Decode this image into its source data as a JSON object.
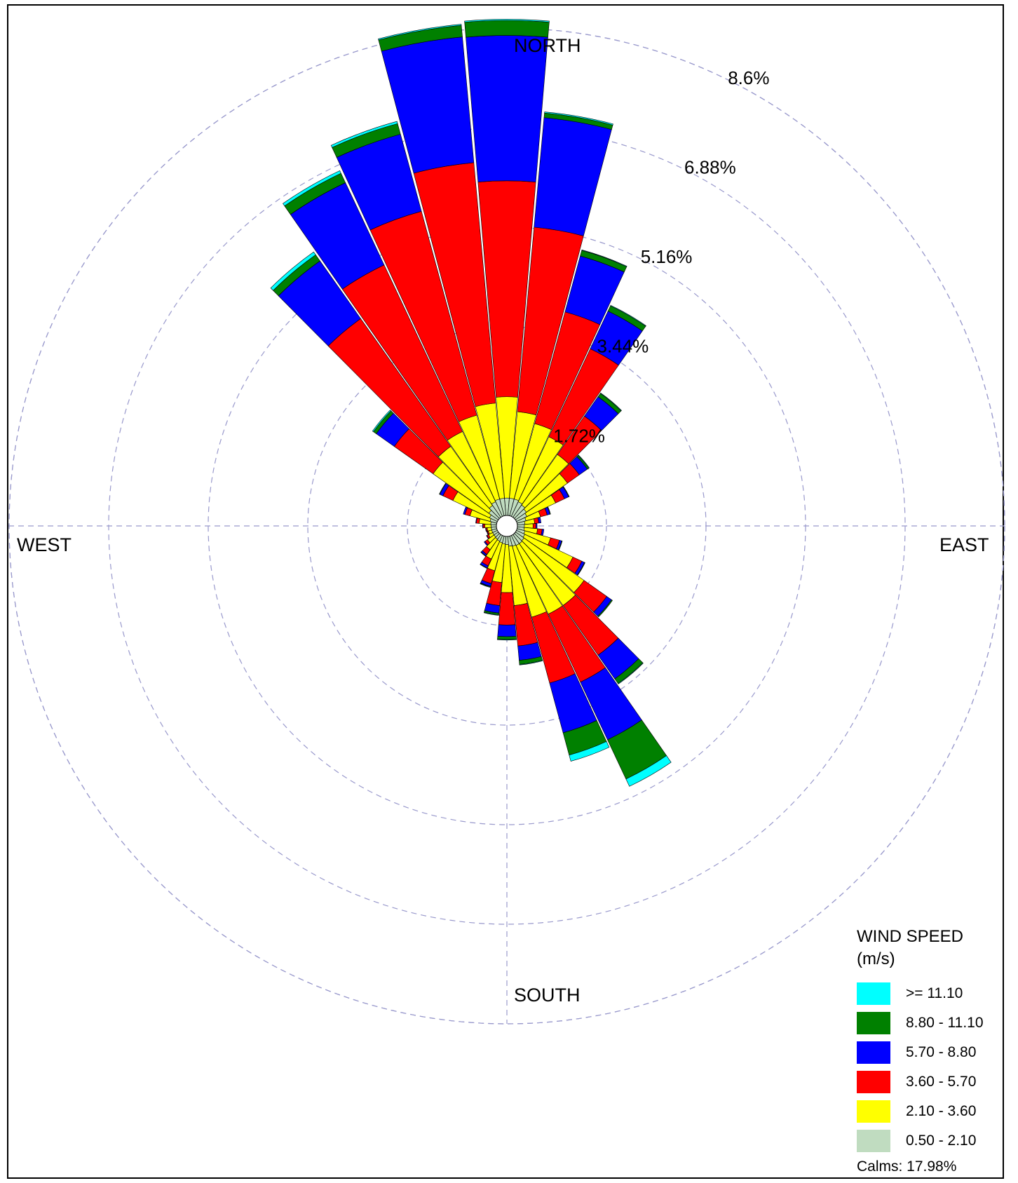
{
  "directions": {
    "north": "NORTH",
    "south": "SOUTH",
    "east": "EAST",
    "west": "WEST"
  },
  "ring_labels": [
    "1.72%",
    "3.44%",
    "5.16%",
    "6.88%",
    "8.6%"
  ],
  "legend": {
    "title_line1": "WIND SPEED",
    "title_line2": "(m/s)",
    "items": [
      {
        "label": ">= 11.10",
        "color": "#00ffff"
      },
      {
        "label": "8.80 - 11.10",
        "color": "#008000"
      },
      {
        "label": "5.70 - 8.80",
        "color": "#0000ff"
      },
      {
        "label": "3.60 - 5.70",
        "color": "#ff0000"
      },
      {
        "label": "2.10 - 3.60",
        "color": "#ffff00"
      },
      {
        "label": "0.50 - 2.10",
        "color": "#c0dcc0"
      }
    ],
    "calms": "Calms: 17.98%"
  },
  "chart_data": {
    "type": "wind-rose",
    "unit": "percent frequency",
    "rings": [
      1.72,
      3.44,
      5.16,
      6.88,
      8.6
    ],
    "r_max": 8.6,
    "sector_count": 36,
    "sector_width_deg": 10,
    "bins": [
      {
        "name": "0.50 - 2.10",
        "color": "#c0dcc0"
      },
      {
        "name": "2.10 - 3.60",
        "color": "#ffff00"
      },
      {
        "name": "3.60 - 5.70",
        "color": "#ff0000"
      },
      {
        "name": "5.70 - 8.80",
        "color": "#0000ff"
      },
      {
        "name": "8.80 - 11.10",
        "color": "#008000"
      },
      {
        "name": ">= 11.10",
        "color": "#00ffff"
      }
    ],
    "sectors": [
      {
        "direction": 0,
        "cumulative": [
          0.3,
          2.05,
          5.78,
          8.29,
          8.55,
          8.57
        ]
      },
      {
        "direction": 10,
        "cumulative": [
          0.3,
          1.8,
          5.0,
          6.9,
          6.98,
          7.0
        ]
      },
      {
        "direction": 20,
        "cumulative": [
          0.3,
          1.65,
          3.65,
          4.65,
          4.75,
          4.76
        ]
      },
      {
        "direction": 30,
        "cumulative": [
          0.28,
          1.52,
          3.2,
          3.92,
          4.02,
          4.03
        ]
      },
      {
        "direction": 40,
        "cumulative": [
          0.26,
          1.33,
          2.14,
          2.55,
          2.62,
          2.63
        ]
      },
      {
        "direction": 50,
        "cumulative": [
          0.23,
          1.1,
          1.35,
          1.52,
          1.55,
          1.56
        ]
      },
      {
        "direction": 60,
        "cumulative": [
          0.2,
          0.75,
          0.92,
          1.0,
          1.01,
          1.01
        ]
      },
      {
        "direction": 70,
        "cumulative": [
          0.16,
          0.42,
          0.54,
          0.59,
          0.6,
          0.6
        ]
      },
      {
        "direction": 80,
        "cumulative": [
          0.13,
          0.3,
          0.37,
          0.41,
          0.41,
          0.41
        ]
      },
      {
        "direction": 90,
        "cumulative": [
          0.12,
          0.27,
          0.32,
          0.34,
          0.34,
          0.34
        ]
      },
      {
        "direction": 100,
        "cumulative": [
          0.12,
          0.35,
          0.43,
          0.46,
          0.46,
          0.46
        ]
      },
      {
        "direction": 110,
        "cumulative": [
          0.14,
          0.6,
          0.76,
          0.8,
          0.81,
          0.81
        ]
      },
      {
        "direction": 120,
        "cumulative": [
          0.16,
          1.08,
          1.25,
          1.3,
          1.31,
          1.31
        ]
      },
      {
        "direction": 130,
        "cumulative": [
          0.18,
          1.45,
          1.93,
          2.03,
          2.05,
          2.05
        ]
      },
      {
        "direction": 140,
        "cumulative": [
          0.19,
          1.5,
          2.55,
          3.05,
          3.15,
          3.16
        ]
      },
      {
        "direction": 150,
        "cumulative": [
          0.19,
          1.5,
          2.8,
          3.9,
          4.65,
          4.79
        ]
      },
      {
        "direction": 160,
        "cumulative": [
          0.18,
          1.45,
          2.63,
          3.52,
          3.92,
          4.03
        ]
      },
      {
        "direction": 170,
        "cumulative": [
          0.17,
          1.2,
          1.9,
          2.15,
          2.22,
          2.23
        ]
      },
      {
        "direction": 180,
        "cumulative": [
          0.14,
          0.97,
          1.53,
          1.73,
          1.78,
          1.79
        ]
      },
      {
        "direction": 190,
        "cumulative": [
          0.13,
          0.8,
          1.2,
          1.33,
          1.36,
          1.37
        ]
      },
      {
        "direction": 200,
        "cumulative": [
          0.12,
          0.62,
          0.85,
          0.9,
          0.91,
          0.92
        ]
      },
      {
        "direction": 210,
        "cumulative": [
          0.11,
          0.45,
          0.58,
          0.62,
          0.63,
          0.63
        ]
      },
      {
        "direction": 220,
        "cumulative": [
          0.1,
          0.32,
          0.42,
          0.45,
          0.46,
          0.46
        ]
      },
      {
        "direction": 230,
        "cumulative": [
          0.09,
          0.23,
          0.28,
          0.3,
          0.3,
          0.3
        ]
      },
      {
        "direction": 240,
        "cumulative": [
          0.09,
          0.17,
          0.2,
          0.21,
          0.21,
          0.21
        ]
      },
      {
        "direction": 250,
        "cumulative": [
          0.09,
          0.15,
          0.17,
          0.18,
          0.18,
          0.18
        ]
      },
      {
        "direction": 260,
        "cumulative": [
          0.09,
          0.16,
          0.18,
          0.19,
          0.19,
          0.19
        ]
      },
      {
        "direction": 270,
        "cumulative": [
          0.09,
          0.2,
          0.23,
          0.24,
          0.24,
          0.24
        ]
      },
      {
        "direction": 280,
        "cumulative": [
          0.1,
          0.3,
          0.35,
          0.36,
          0.36,
          0.36
        ]
      },
      {
        "direction": 290,
        "cumulative": [
          0.12,
          0.48,
          0.57,
          0.6,
          0.6,
          0.6
        ]
      },
      {
        "direction": 300,
        "cumulative": [
          0.15,
          0.85,
          1.04,
          1.1,
          1.11,
          1.11
        ]
      },
      {
        "direction": 310,
        "cumulative": [
          0.2,
          1.38,
          2.2,
          2.58,
          2.64,
          2.66
        ]
      },
      {
        "direction": 320,
        "cumulative": [
          0.25,
          1.5,
          4.2,
          5.42,
          5.55,
          5.61
        ]
      },
      {
        "direction": 330,
        "cumulative": [
          0.28,
          1.62,
          4.8,
          6.37,
          6.55,
          6.6
        ]
      },
      {
        "direction": 340,
        "cumulative": [
          0.3,
          1.8,
          5.45,
          6.83,
          7.02,
          7.06
        ]
      },
      {
        "direction": 350,
        "cumulative": [
          0.3,
          1.95,
          6.12,
          8.3,
          8.5,
          8.52
        ]
      }
    ]
  }
}
